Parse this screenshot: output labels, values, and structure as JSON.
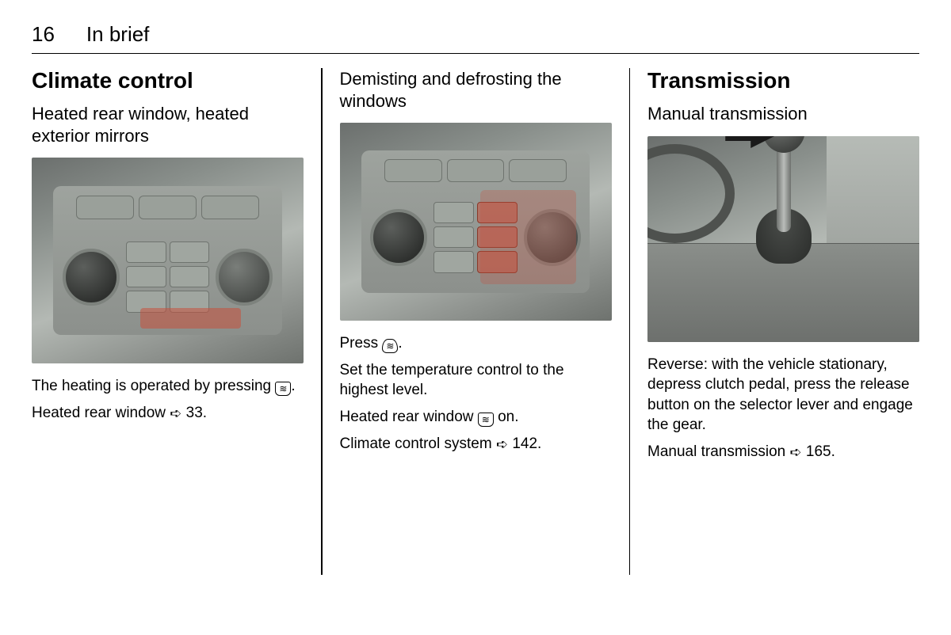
{
  "page": {
    "number": "16",
    "chapter": "In brief"
  },
  "col1": {
    "h1": "Climate control",
    "h2": "Heated rear window, heated exterior mirrors",
    "p1a": "The heating is operated by pressing ",
    "p1b": ".",
    "p2a": "Heated rear window ",
    "p2b": " 33."
  },
  "col2": {
    "h2": "Demisting and defrosting the windows",
    "p1a": "Press ",
    "p1b": ".",
    "p2": "Set the temperature control to the highest level.",
    "p3a": "Heated rear window ",
    "p3b": " on.",
    "p4a": "Climate control system ",
    "p4b": " 142."
  },
  "col3": {
    "h1": "Transmission",
    "h2": "Manual transmission",
    "p1": "Reverse: with the vehicle stationary, depress clutch pedal, press the release button on the selector lever and engage the gear.",
    "p2a": "Manual transmission ",
    "p2b": " 165."
  },
  "colors": {
    "highlight": "#c8503c",
    "text": "#000000",
    "figure_bg_start": "#6b6f6d",
    "figure_bg_end": "#b4b9b4"
  },
  "glyphs": {
    "rear_defrost": "rear-window-heat-icon",
    "front_defrost": "front-defrost-icon",
    "xref": "➪"
  }
}
